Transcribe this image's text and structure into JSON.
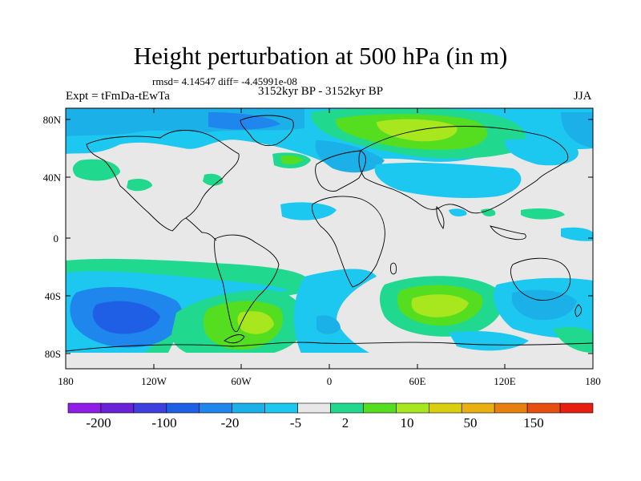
{
  "figure": {
    "title": "Height perturbation at 500 hPa (in m)",
    "stats_line": "rmsd= 4.14547 diff= -4.45991e-08",
    "left_label": "Expt = tFmDa-tEwTa",
    "center_label": "3152kyr BP - 3152kyr BP",
    "right_label": "JJA"
  },
  "axes": {
    "lat_ticks": [
      "80N",
      "40N",
      "0",
      "40S",
      "80S"
    ],
    "lat_values": [
      80,
      40,
      0,
      -40,
      -80
    ],
    "lon_ticks": [
      "180",
      "120W",
      "60W",
      "0",
      "60E",
      "120E",
      "180"
    ],
    "lon_values": [
      -180,
      -120,
      -60,
      0,
      60,
      120,
      180
    ],
    "lat_range": [
      -90,
      90
    ],
    "lon_range": [
      -180,
      180
    ]
  },
  "colorbar": {
    "colors": [
      "#8f1fe8",
      "#6a22d9",
      "#3f3fe0",
      "#1f5fe6",
      "#1e86ec",
      "#1bb0e8",
      "#1cc8ef",
      "#e8e8e8",
      "#20d98e",
      "#55dd20",
      "#a8e61e",
      "#d8cf10",
      "#e8b010",
      "#e88010",
      "#e84e10",
      "#e81f10"
    ],
    "labels": [
      "-200",
      "-100",
      "-20",
      "-5",
      "2",
      "10",
      "50",
      "150"
    ],
    "label_after_box": [
      1,
      3,
      5,
      7,
      9,
      11,
      13,
      15
    ]
  },
  "palette": {
    "ocean_neutral": "#e8e8e8",
    "coast": "#000000"
  }
}
